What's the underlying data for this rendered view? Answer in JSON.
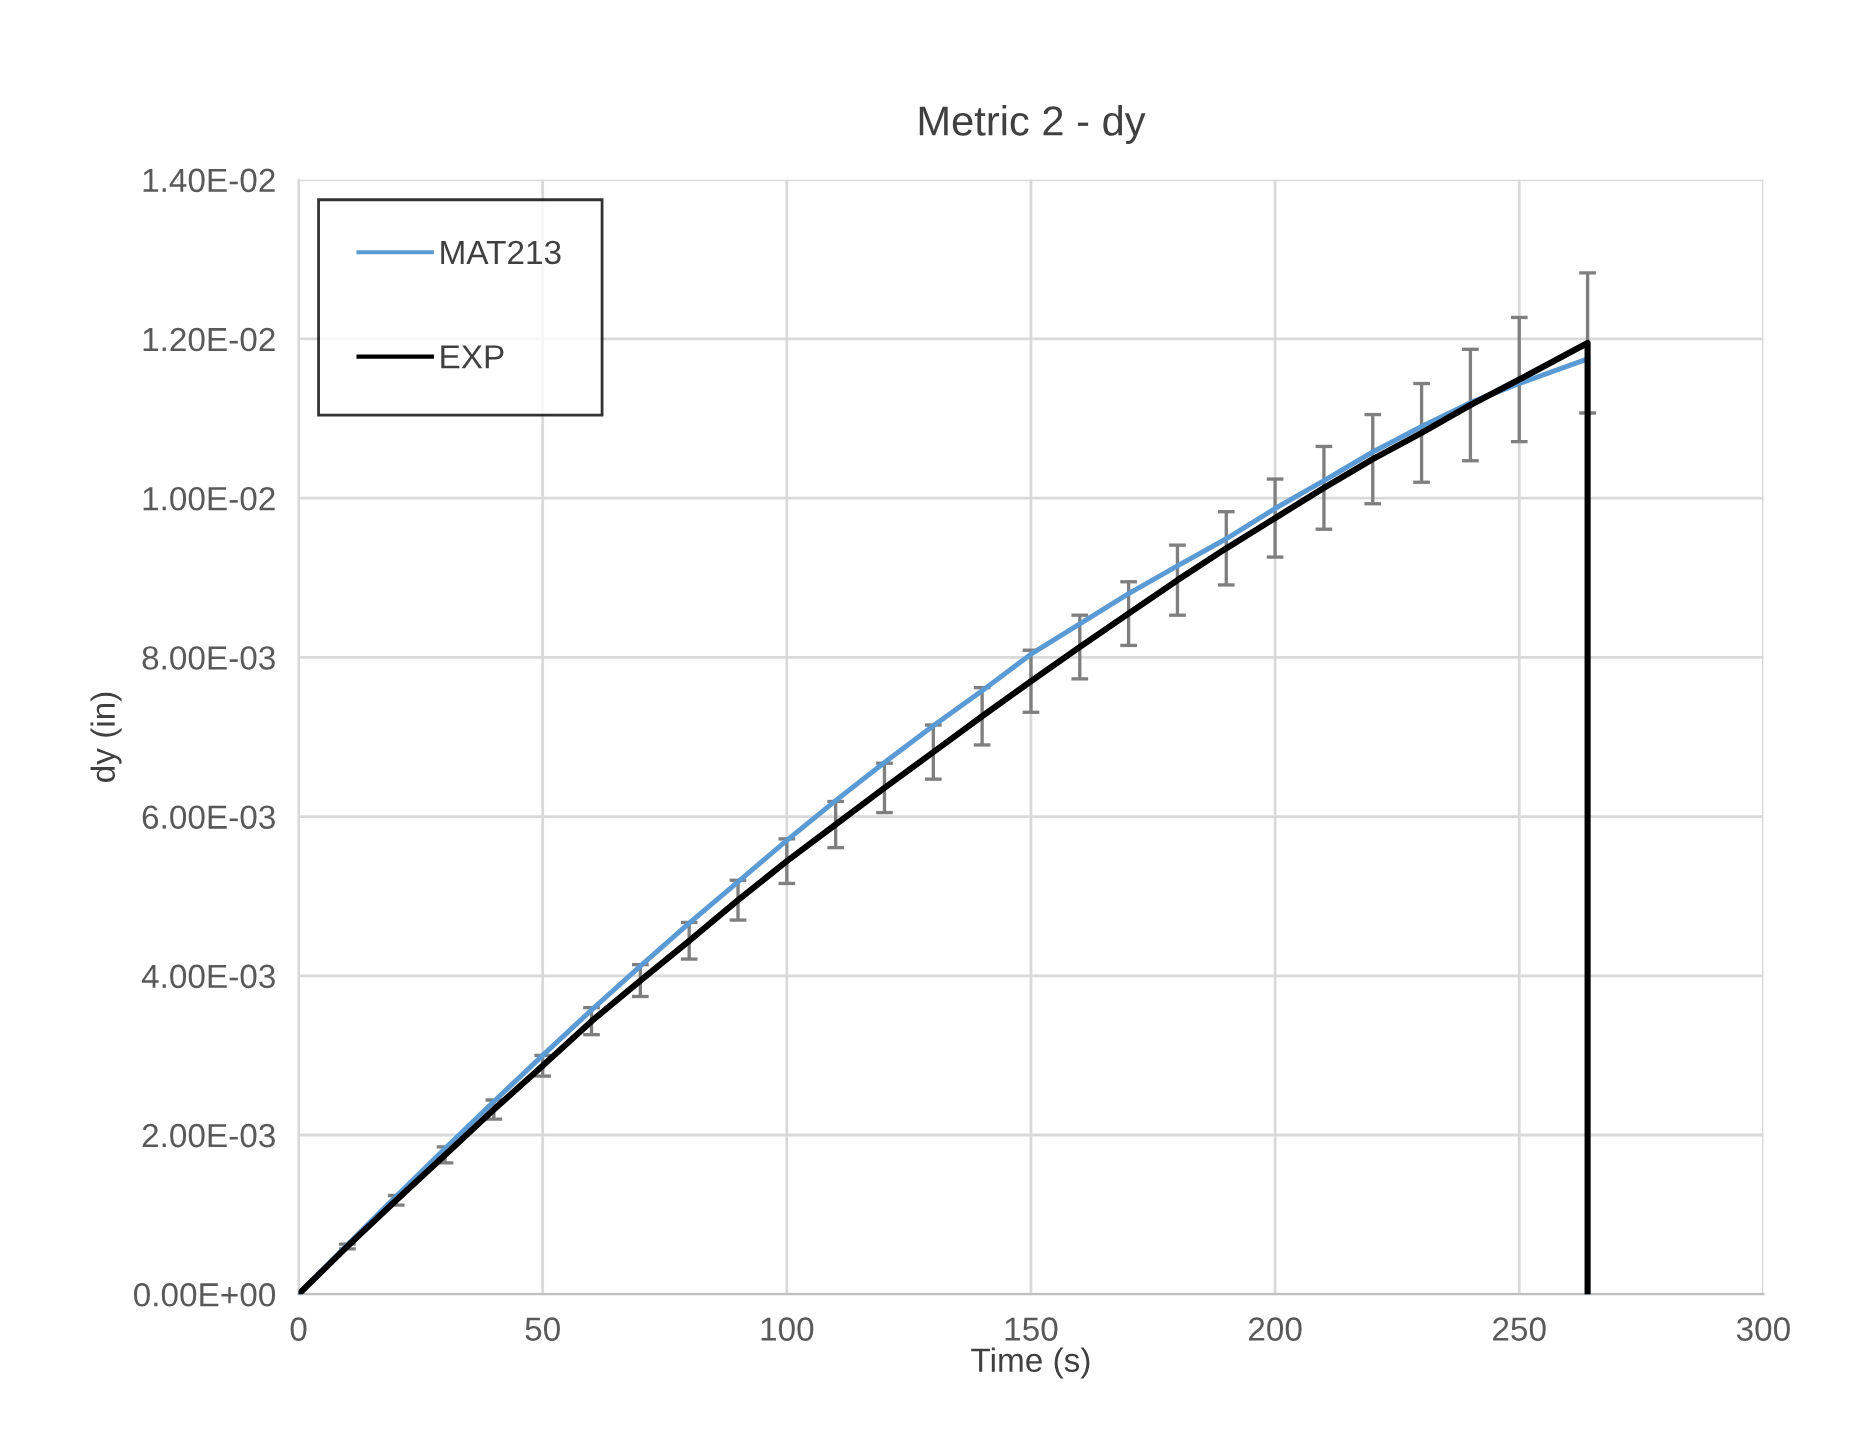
{
  "chart_data": {
    "type": "line",
    "title": "Metric 2 - dy",
    "xlabel": "Time (s)",
    "ylabel": "dy (in)",
    "xlim": [
      0,
      300
    ],
    "xticks": [
      0,
      50,
      100,
      150,
      200,
      250,
      300
    ],
    "ylim": [
      0,
      0.014
    ],
    "yticks": [
      {
        "value": 0,
        "label": "0.00E+00"
      },
      {
        "value": 0.002,
        "label": "2.00E-03"
      },
      {
        "value": 0.004,
        "label": "4.00E-03"
      },
      {
        "value": 0.006,
        "label": "6.00E-03"
      },
      {
        "value": 0.008,
        "label": "8.00E-03"
      },
      {
        "value": 0.01,
        "label": "1.00E-02"
      },
      {
        "value": 0.012,
        "label": "1.20E-02"
      },
      {
        "value": 0.014,
        "label": "1.40E-02"
      }
    ],
    "grid": true,
    "legend": "top left",
    "marker": "none",
    "line_style": "solid",
    "series": [
      {
        "name": "MAT213",
        "color": "#5b9bd5",
        "x": [
          0,
          10,
          20,
          30,
          40,
          50,
          60,
          70,
          80,
          90,
          100,
          110,
          120,
          130,
          140,
          150,
          160,
          170,
          180,
          190,
          200,
          210,
          220,
          230,
          240,
          250,
          264,
          264
        ],
        "values": [
          0,
          0.00062,
          0.00123,
          0.00183,
          0.00242,
          0.003,
          0.00357,
          0.00412,
          0.00466,
          0.00518,
          0.0057,
          0.0062,
          0.00668,
          0.00714,
          0.00758,
          0.00804,
          0.00842,
          0.0088,
          0.00915,
          0.00949,
          0.00987,
          0.01022,
          0.01058,
          0.0109,
          0.0112,
          0.01144,
          0.01175,
          0
        ]
      },
      {
        "name": "EXP",
        "color": "#000000",
        "x": [
          0,
          10,
          20,
          30,
          40,
          50,
          60,
          70,
          80,
          90,
          100,
          110,
          120,
          130,
          140,
          150,
          160,
          170,
          180,
          190,
          200,
          210,
          220,
          230,
          240,
          250,
          264,
          264
        ],
        "values": [
          0,
          0.0006,
          0.00118,
          0.00175,
          0.00232,
          0.00287,
          0.00343,
          0.00394,
          0.00444,
          0.00495,
          0.00544,
          0.0059,
          0.00636,
          0.00681,
          0.00726,
          0.0077,
          0.00813,
          0.00855,
          0.00897,
          0.00937,
          0.00975,
          0.01013,
          0.01049,
          0.01082,
          0.01117,
          0.01149,
          0.01195,
          0
        ],
        "errors": [
          null,
          3e-05,
          6e-05,
          0.0001,
          0.00012,
          0.00013,
          0.00017,
          0.0002,
          0.00023,
          0.00025,
          0.00028,
          0.00029,
          0.00031,
          0.00034,
          0.00036,
          0.00039,
          0.0004,
          0.0004,
          0.00044,
          0.00046,
          0.00049,
          0.00052,
          0.00056,
          0.00062,
          0.0007,
          0.00078,
          0.00088,
          null
        ]
      }
    ]
  }
}
